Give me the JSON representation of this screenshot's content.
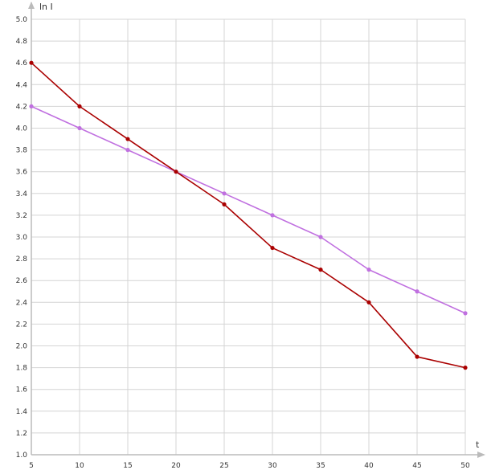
{
  "chart_data": {
    "type": "line",
    "xlabel": "t",
    "ylabel": "ln I",
    "xlim": [
      5,
      50
    ],
    "ylim": [
      1.0,
      5.0
    ],
    "x_ticks": [
      "5",
      "10",
      "15",
      "20",
      "25",
      "30",
      "35",
      "40",
      "45",
      "50"
    ],
    "y_ticks": [
      "1.0",
      "1.2",
      "1.4",
      "1.6",
      "1.8",
      "2.0",
      "2.2",
      "2.4",
      "2.6",
      "2.8",
      "3.0",
      "3.2",
      "3.4",
      "3.6",
      "3.8",
      "4.0",
      "4.2",
      "4.4",
      "4.6",
      "4.8",
      "5.0"
    ],
    "grid": true,
    "x": [
      5,
      10,
      15,
      20,
      25,
      30,
      35,
      40,
      45,
      50
    ],
    "series": [
      {
        "color": "#aa0000",
        "values": [
          4.6,
          4.2,
          3.9,
          3.6,
          3.3,
          2.9,
          2.7,
          2.4,
          1.9,
          1.8
        ]
      },
      {
        "color": "#c070e0",
        "values": [
          4.2,
          4.0,
          3.8,
          3.6,
          3.4,
          3.2,
          3.0,
          2.7,
          2.5,
          2.3
        ]
      }
    ],
    "colors": {
      "grid": "#d4d4d4",
      "axis": "#bbbbbb"
    }
  }
}
